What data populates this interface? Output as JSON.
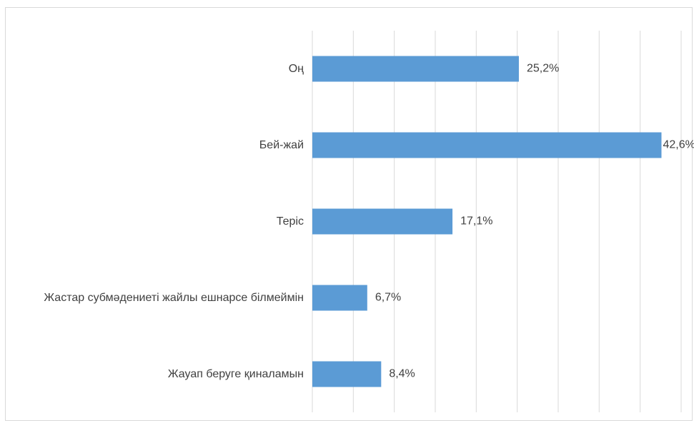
{
  "chart_data": {
    "type": "barh",
    "categories": [
      "Оң",
      "Бей-жай",
      "Теріс",
      "Жастар субмәдениеті жайлы ешнарсе білмеймін",
      "Жауап беруге қиналамын"
    ],
    "values": [
      25.2,
      42.6,
      17.1,
      6.7,
      8.4
    ],
    "value_labels": [
      "25,2%",
      "42,6%",
      "17,1%",
      "6,7%",
      "8,4%"
    ],
    "color": "#5b9bd5",
    "xlim": [
      0,
      45
    ],
    "xticks": [
      0,
      5,
      10,
      15,
      20,
      25,
      30,
      35,
      40,
      45
    ],
    "grid": true
  }
}
